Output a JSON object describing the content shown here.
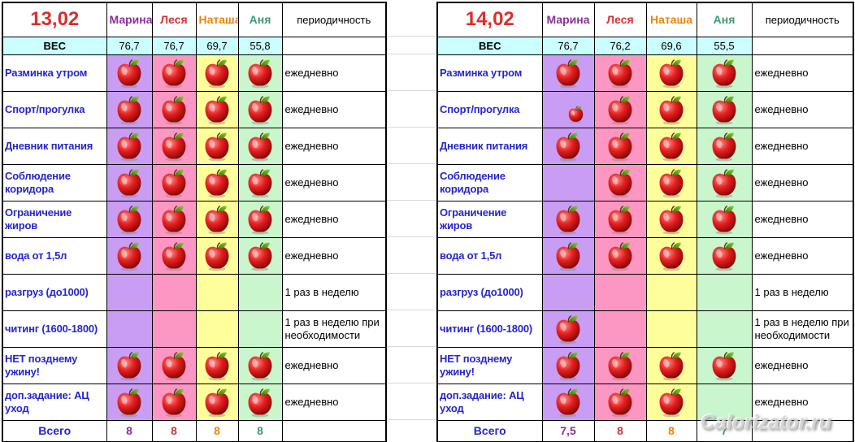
{
  "watermark": "Calorizator.ru",
  "colors": {
    "date_text": "#DD2E2E",
    "marina_text": "#8B2F9B",
    "lesya_text": "#D43535",
    "natasha_text": "#EE8306",
    "anya_text": "#3D9B72",
    "marina_bg": "#C89DF3",
    "lesya_bg": "#FC97C3",
    "natasha_bg": "#FEFE9A",
    "anya_bg": "#C9F6CC",
    "weight_row_bg": "#CBFEFE",
    "weight_label_text": "#7C4E9E",
    "label_text": "#2525CE"
  },
  "icons": {
    "done_marker": "red-apple-icon",
    "half_done_marker": "small-red-apple-icon"
  },
  "tables": [
    {
      "date": "13,02",
      "people": [
        "Марина",
        "Леся",
        "Наташа",
        "Аня"
      ],
      "periodicity_header": "периодичность",
      "weight_label": "ВЕС",
      "weights": [
        "76,7",
        "76,7",
        "69,7",
        "55,8"
      ],
      "rows": [
        {
          "label": "Разминка утром",
          "apples": [
            1,
            1,
            1,
            1
          ],
          "periodicity": "ежедневно"
        },
        {
          "label": "Спорт/прогулка",
          "apples": [
            1,
            1,
            1,
            1
          ],
          "periodicity": "ежедневно"
        },
        {
          "label": "Дневник питания",
          "apples": [
            1,
            1,
            1,
            1
          ],
          "periodicity": "ежедневно"
        },
        {
          "label": "Соблюдение коридора",
          "apples": [
            1,
            1,
            1,
            1
          ],
          "periodicity": "ежедневно"
        },
        {
          "label": "Ограничение жиров",
          "apples": [
            1,
            1,
            1,
            1
          ],
          "periodicity": "ежедневно"
        },
        {
          "label": "вода от 1,5л",
          "apples": [
            1,
            1,
            1,
            1
          ],
          "periodicity": "ежедневно"
        },
        {
          "label": "разгруз (до1000)",
          "apples": [
            0,
            0,
            0,
            0
          ],
          "periodicity": "1 раз в неделю"
        },
        {
          "label": "читинг (1600-1800)",
          "apples": [
            0,
            0,
            0,
            0
          ],
          "periodicity": "1 раз в неделю при необходимости"
        },
        {
          "label": "НЕТ позднему ужину!",
          "apples": [
            1,
            1,
            1,
            1
          ],
          "periodicity": "ежедневно"
        },
        {
          "label": "доп.задание: АЦ уход",
          "apples": [
            1,
            1,
            1,
            1
          ],
          "periodicity": "ежедневно"
        }
      ],
      "total_label": "Всего",
      "totals": [
        "8",
        "8",
        "8",
        "8"
      ]
    },
    {
      "date": "14,02",
      "people": [
        "Марина",
        "Леся",
        "Наташа",
        "Аня"
      ],
      "periodicity_header": "периодичность",
      "weight_label": "ВЕС",
      "weights": [
        "76,7",
        "76,2",
        "69,6",
        "55,5"
      ],
      "rows": [
        {
          "label": "Разминка утром",
          "apples": [
            1,
            1,
            1,
            1
          ],
          "periodicity": "ежедневно"
        },
        {
          "label": "Спорт/прогулка",
          "apples": [
            0.5,
            1,
            1,
            1
          ],
          "periodicity": "ежедневно"
        },
        {
          "label": "Дневник питания",
          "apples": [
            1,
            1,
            1,
            1
          ],
          "periodicity": "ежедневно"
        },
        {
          "label": "Соблюдение коридора",
          "apples": [
            0,
            1,
            1,
            1
          ],
          "periodicity": "ежедневно"
        },
        {
          "label": "Ограничение жиров",
          "apples": [
            1,
            1,
            1,
            1
          ],
          "periodicity": "ежедневно"
        },
        {
          "label": "вода от 1,5л",
          "apples": [
            1,
            1,
            1,
            1
          ],
          "periodicity": "ежедневно"
        },
        {
          "label": "разгруз (до1000)",
          "apples": [
            0,
            0,
            0,
            0
          ],
          "periodicity": "1 раз в неделю"
        },
        {
          "label": "читинг (1600-1800)",
          "apples": [
            1,
            0,
            0,
            0
          ],
          "periodicity": "1 раз в неделю при необходимости"
        },
        {
          "label": "НЕТ позднему ужину!",
          "apples": [
            1,
            1,
            1,
            1
          ],
          "periodicity": "ежедневно"
        },
        {
          "label": "доп.задание: АЦ уход",
          "apples": [
            1,
            1,
            1,
            0
          ],
          "periodicity": "ежедневно"
        }
      ],
      "total_label": "Всего",
      "totals": [
        "7,5",
        "8",
        "8",
        "7"
      ]
    }
  ]
}
